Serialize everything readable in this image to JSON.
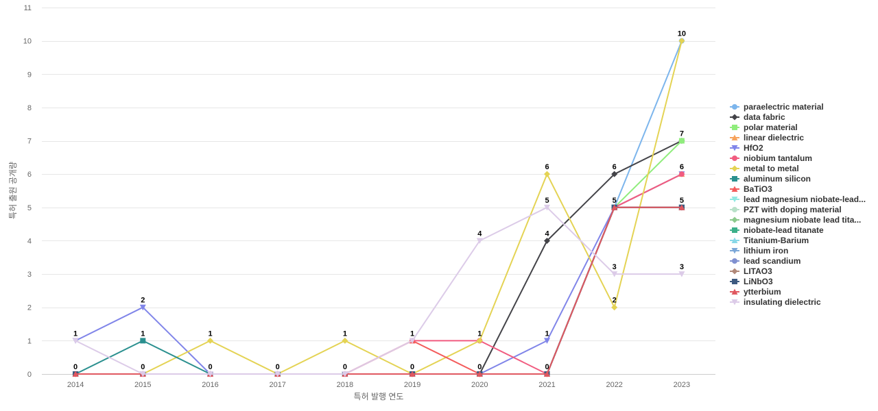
{
  "chart_data": {
    "type": "line",
    "xlabel": "특허 발행 연도",
    "ylabel": "특허 출원 공개량",
    "ylim": [
      0,
      11
    ],
    "yticks": [
      0,
      1,
      2,
      3,
      4,
      5,
      6,
      7,
      8,
      9,
      10,
      11
    ],
    "categories": [
      "2014",
      "2015",
      "2016",
      "2017",
      "2018",
      "2019",
      "2020",
      "2021",
      "2022",
      "2023"
    ],
    "grid": true,
    "legend_position": "right",
    "series": [
      {
        "name": "paraelectric material",
        "color": "#7cb5ec",
        "marker": "circle",
        "values": [
          0,
          0,
          0,
          0,
          0,
          0,
          0,
          0,
          5,
          10
        ]
      },
      {
        "name": "data fabric",
        "color": "#434348",
        "marker": "diamond",
        "values": [
          0,
          0,
          0,
          0,
          0,
          0,
          0,
          4,
          6,
          7
        ]
      },
      {
        "name": "polar material",
        "color": "#90ed7d",
        "marker": "square",
        "values": [
          0,
          0,
          0,
          0,
          0,
          0,
          0,
          0,
          5,
          7
        ]
      },
      {
        "name": "linear dielectric",
        "color": "#f7a35c",
        "marker": "triangle",
        "values": [
          0,
          0,
          0,
          0,
          0,
          0,
          0,
          0,
          5,
          6
        ]
      },
      {
        "name": "HfO2",
        "color": "#8085e9",
        "marker": "triangle-down",
        "values": [
          1,
          2,
          0,
          0,
          0,
          0,
          0,
          1,
          5,
          6
        ]
      },
      {
        "name": "niobium tantalum",
        "color": "#f15c80",
        "marker": "circle",
        "values": [
          0,
          0,
          0,
          0,
          0,
          1,
          1,
          0,
          5,
          6
        ]
      },
      {
        "name": "metal to metal",
        "color": "#e4d354",
        "marker": "diamond",
        "values": [
          0,
          0,
          1,
          0,
          1,
          0,
          1,
          6,
          2,
          10
        ]
      },
      {
        "name": "aluminum silicon",
        "color": "#2b908f",
        "marker": "square",
        "values": [
          0,
          1,
          0,
          0,
          0,
          0,
          0,
          0,
          5,
          5
        ]
      },
      {
        "name": "BaTiO3",
        "color": "#f45b5b",
        "marker": "triangle",
        "values": [
          0,
          0,
          0,
          0,
          0,
          1,
          0,
          0,
          5,
          5
        ]
      },
      {
        "name": "lead magnesium niobate-lead...",
        "color": "#91e8e1",
        "marker": "triangle-down",
        "values": [
          0,
          0,
          0,
          0,
          0,
          0,
          0,
          0,
          5,
          5
        ]
      },
      {
        "name": "PZT with doping material",
        "color": "#b8e0c8",
        "marker": "circle",
        "values": [
          0,
          0,
          0,
          0,
          0,
          0,
          0,
          0,
          5,
          5
        ]
      },
      {
        "name": "magnesium niobate lead tita...",
        "color": "#8cc98c",
        "marker": "diamond",
        "values": [
          0,
          0,
          0,
          0,
          0,
          0,
          0,
          0,
          5,
          5
        ]
      },
      {
        "name": "niobate-lead titanate",
        "color": "#3cb08a",
        "marker": "square",
        "values": [
          0,
          0,
          0,
          0,
          0,
          0,
          0,
          0,
          5,
          5
        ]
      },
      {
        "name": "Titanium-Barium",
        "color": "#88d8e8",
        "marker": "triangle",
        "values": [
          0,
          0,
          0,
          0,
          0,
          0,
          0,
          0,
          5,
          5
        ]
      },
      {
        "name": "lithium iron",
        "color": "#7ba7d8",
        "marker": "triangle-down",
        "values": [
          0,
          0,
          0,
          0,
          0,
          0,
          0,
          0,
          5,
          5
        ]
      },
      {
        "name": "lead scandium",
        "color": "#8090d0",
        "marker": "circle",
        "values": [
          0,
          0,
          0,
          0,
          0,
          0,
          0,
          0,
          5,
          5
        ]
      },
      {
        "name": "LITAO3",
        "color": "#b08878",
        "marker": "diamond",
        "values": [
          0,
          0,
          0,
          0,
          0,
          0,
          0,
          0,
          5,
          5
        ]
      },
      {
        "name": "LiNbO3",
        "color": "#3d5a80",
        "marker": "square",
        "values": [
          0,
          0,
          0,
          0,
          0,
          0,
          0,
          0,
          5,
          5
        ]
      },
      {
        "name": "ytterbium",
        "color": "#e05860",
        "marker": "triangle",
        "values": [
          0,
          0,
          0,
          0,
          0,
          0,
          0,
          0,
          5,
          5
        ]
      },
      {
        "name": "insulating dielectric",
        "color": "#dccbe8",
        "marker": "triangle-down",
        "values": [
          1,
          0,
          0,
          0,
          0,
          1,
          4,
          5,
          3,
          3
        ]
      }
    ],
    "data_labels": [
      {
        "x": "2014",
        "value": "1",
        "y": 1
      },
      {
        "x": "2014",
        "value": "0",
        "y": 0
      },
      {
        "x": "2015",
        "value": "2",
        "y": 2
      },
      {
        "x": "2015",
        "value": "1",
        "y": 1
      },
      {
        "x": "2015",
        "value": "0",
        "y": 0
      },
      {
        "x": "2016",
        "value": "1",
        "y": 1
      },
      {
        "x": "2016",
        "value": "0",
        "y": 0
      },
      {
        "x": "2017",
        "value": "0",
        "y": 0
      },
      {
        "x": "2018",
        "value": "1",
        "y": 1
      },
      {
        "x": "2018",
        "value": "0",
        "y": 0
      },
      {
        "x": "2019",
        "value": "1",
        "y": 1
      },
      {
        "x": "2019",
        "value": "0",
        "y": 0
      },
      {
        "x": "2020",
        "value": "4",
        "y": 4
      },
      {
        "x": "2020",
        "value": "1",
        "y": 1
      },
      {
        "x": "2020",
        "value": "0",
        "y": 0
      },
      {
        "x": "2021",
        "value": "6",
        "y": 6
      },
      {
        "x": "2021",
        "value": "5",
        "y": 5
      },
      {
        "x": "2021",
        "value": "4",
        "y": 4
      },
      {
        "x": "2021",
        "value": "1",
        "y": 1
      },
      {
        "x": "2021",
        "value": "0",
        "y": 0
      },
      {
        "x": "2022",
        "value": "6",
        "y": 6
      },
      {
        "x": "2022",
        "value": "5",
        "y": 5
      },
      {
        "x": "2022",
        "value": "3",
        "y": 3
      },
      {
        "x": "2022",
        "value": "2",
        "y": 2
      },
      {
        "x": "2023",
        "value": "10",
        "y": 10
      },
      {
        "x": "2023",
        "value": "7",
        "y": 7
      },
      {
        "x": "2023",
        "value": "6",
        "y": 6
      },
      {
        "x": "2023",
        "value": "5",
        "y": 5
      },
      {
        "x": "2023",
        "value": "3",
        "y": 3
      }
    ]
  }
}
